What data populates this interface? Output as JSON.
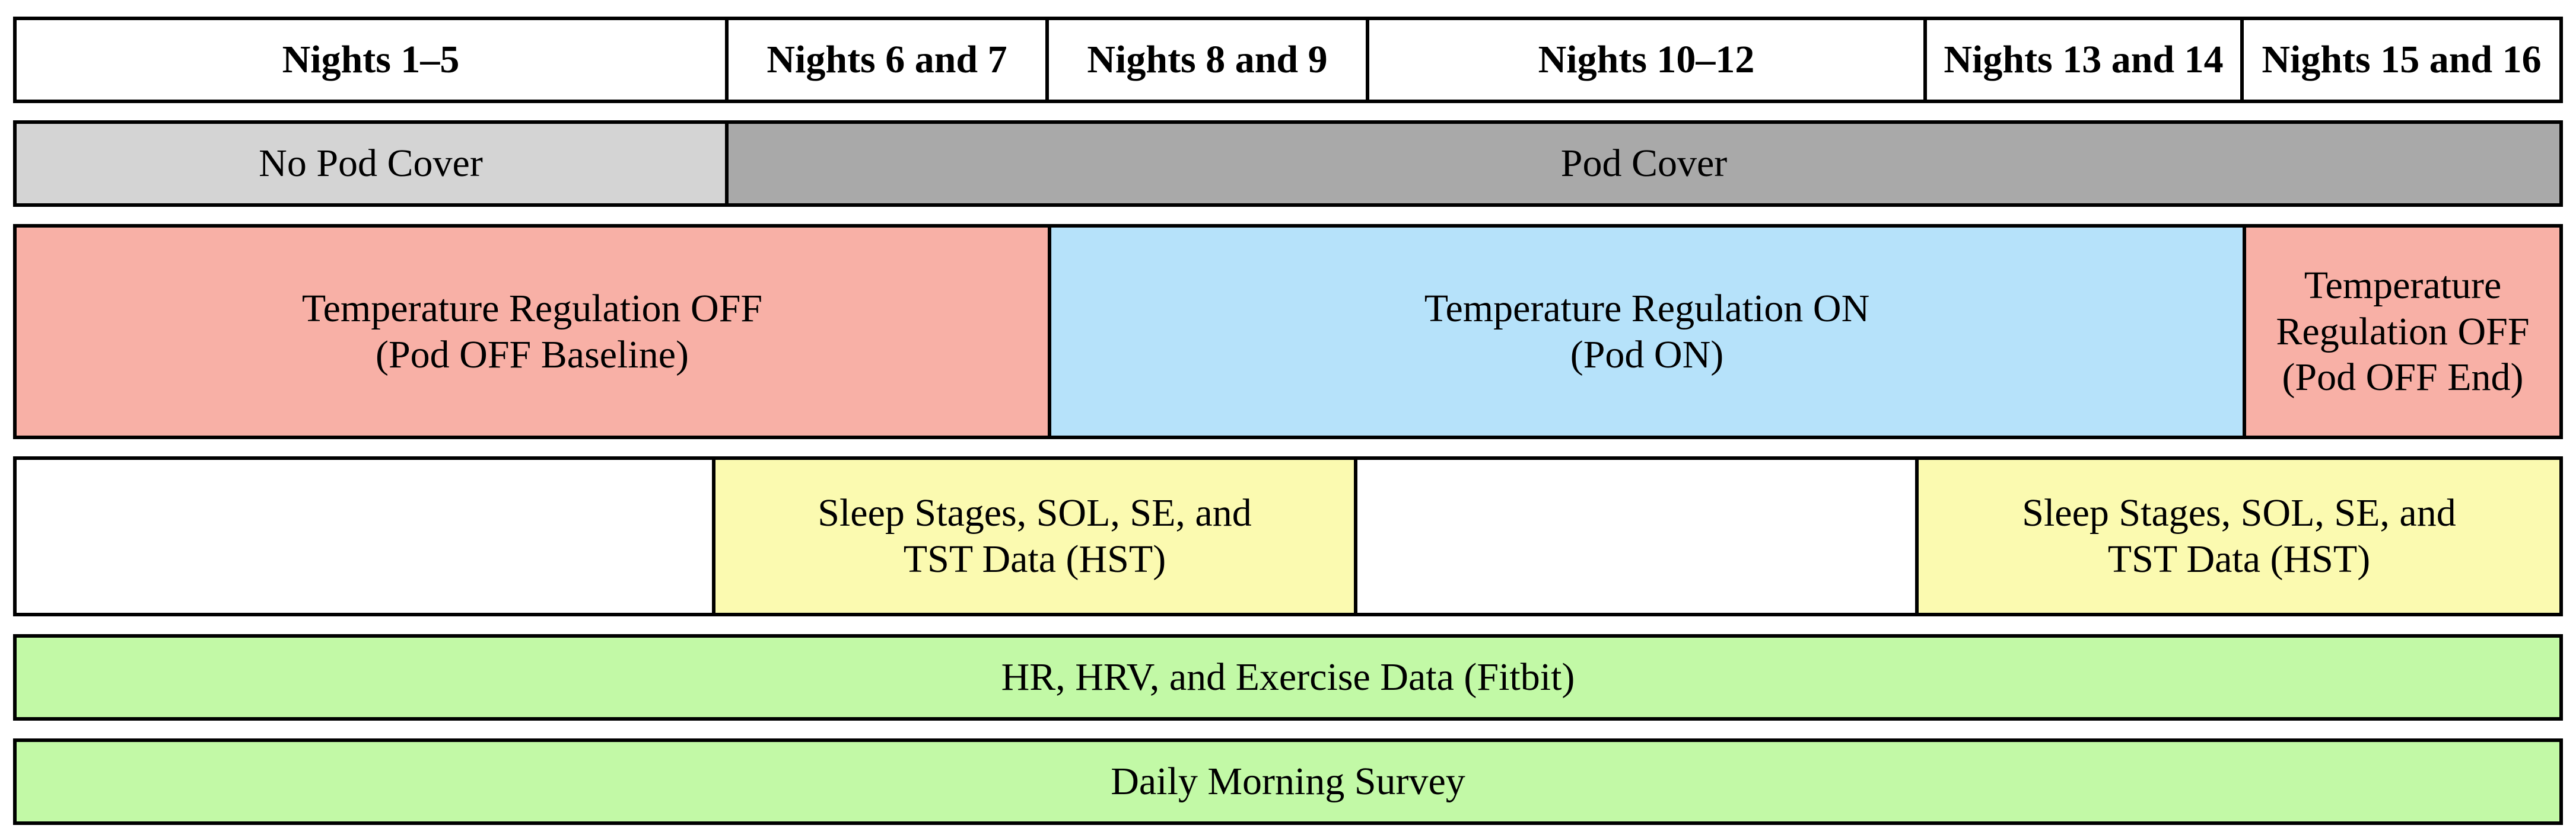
{
  "nights_header": [
    "Nights 1–5",
    "Nights 6 and 7",
    "Nights 8 and 9",
    "Nights 10–12",
    "Nights 13 and 14",
    "Nights 15 and 16"
  ],
  "cover_row": {
    "no_cover": "No Pod Cover",
    "cover": "Pod Cover"
  },
  "temperature_row": {
    "off_baseline": "Temperature Regulation OFF\n(Pod OFF Baseline)",
    "on": "Temperature Regulation ON\n(Pod ON)",
    "off_end": "Temperature\nRegulation OFF\n(Pod OFF End)"
  },
  "hst_row": {
    "first": "Sleep Stages, SOL, SE, and\nTST Data (HST)",
    "second": "Sleep Stages, SOL, SE, and\nTST Data (HST)"
  },
  "fitbit_row": "HR, HRV, and Exercise Data (Fitbit)",
  "survey_row": "Daily Morning Survey",
  "colors": {
    "pod_off": "#f8b0a6",
    "pod_on": "#b6e2fa",
    "hst": "#fbfab0",
    "fitbit_survey": "#c2f9a6",
    "no_cover": "#d4d4d4",
    "cover": "#a9a9a9"
  }
}
